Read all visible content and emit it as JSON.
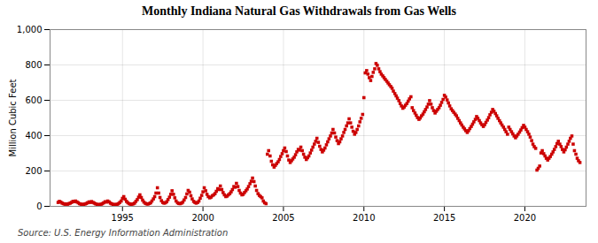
{
  "chart_data": {
    "type": "scatter",
    "title": "Monthly Indiana Natural Gas Withdrawals from Gas Wells",
    "ylabel": "Million Cubic Feet",
    "source": "Source: U.S. Energy Information Administration",
    "color": "#cc0000",
    "marker": "square",
    "grid": true,
    "xlim": [
      1990.5,
      2023.8
    ],
    "xticks": [
      1995,
      2000,
      2005,
      2010,
      2015,
      2020
    ],
    "ylim": [
      0,
      1000
    ],
    "yticks": [
      0,
      200,
      400,
      600,
      800,
      {
        "value": 1000,
        "label": "1,000"
      }
    ],
    "x": [
      1991.0,
      1991.08,
      1991.17,
      1991.25,
      1991.33,
      1991.42,
      1991.5,
      1991.58,
      1991.67,
      1991.75,
      1991.83,
      1991.92,
      1992.0,
      1992.08,
      1992.17,
      1992.25,
      1992.33,
      1992.42,
      1992.5,
      1992.58,
      1992.67,
      1992.75,
      1992.83,
      1992.92,
      1993.0,
      1993.08,
      1993.17,
      1993.25,
      1993.33,
      1993.42,
      1993.5,
      1993.58,
      1993.67,
      1993.75,
      1993.83,
      1993.92,
      1994.0,
      1994.08,
      1994.17,
      1994.25,
      1994.33,
      1994.42,
      1994.5,
      1994.58,
      1994.67,
      1994.75,
      1994.83,
      1994.92,
      1995.0,
      1995.08,
      1995.17,
      1995.25,
      1995.33,
      1995.42,
      1995.5,
      1995.58,
      1995.67,
      1995.75,
      1995.83,
      1995.92,
      1996.0,
      1996.08,
      1996.17,
      1996.25,
      1996.33,
      1996.42,
      1996.5,
      1996.58,
      1996.67,
      1996.75,
      1996.83,
      1996.92,
      1997.0,
      1997.08,
      1997.17,
      1997.25,
      1997.33,
      1997.42,
      1997.5,
      1997.58,
      1997.67,
      1997.75,
      1997.83,
      1997.92,
      1998.0,
      1998.08,
      1998.17,
      1998.25,
      1998.33,
      1998.42,
      1998.5,
      1998.58,
      1998.67,
      1998.75,
      1998.83,
      1998.92,
      1999.0,
      1999.08,
      1999.17,
      1999.25,
      1999.33,
      1999.42,
      1999.5,
      1999.58,
      1999.67,
      1999.75,
      1999.83,
      1999.92,
      2000.0,
      2000.08,
      2000.17,
      2000.25,
      2000.33,
      2000.42,
      2000.5,
      2000.58,
      2000.67,
      2000.75,
      2000.83,
      2000.92,
      2001.0,
      2001.08,
      2001.17,
      2001.25,
      2001.33,
      2001.42,
      2001.5,
      2001.58,
      2001.67,
      2001.75,
      2001.83,
      2001.92,
      2002.0,
      2002.08,
      2002.17,
      2002.25,
      2002.33,
      2002.42,
      2002.5,
      2002.58,
      2002.67,
      2002.75,
      2002.83,
      2002.92,
      2003.0,
      2003.08,
      2003.17,
      2003.25,
      2003.33,
      2003.42,
      2003.5,
      2003.58,
      2003.67,
      2003.75,
      2003.83,
      2003.92,
      2004.0,
      2004.08,
      2004.17,
      2004.25,
      2004.33,
      2004.42,
      2004.5,
      2004.58,
      2004.67,
      2004.75,
      2004.83,
      2004.92,
      2005.0,
      2005.08,
      2005.17,
      2005.25,
      2005.33,
      2005.42,
      2005.5,
      2005.58,
      2005.67,
      2005.75,
      2005.83,
      2005.92,
      2006.0,
      2006.08,
      2006.17,
      2006.25,
      2006.33,
      2006.42,
      2006.5,
      2006.58,
      2006.67,
      2006.75,
      2006.83,
      2006.92,
      2007.0,
      2007.08,
      2007.17,
      2007.25,
      2007.33,
      2007.42,
      2007.5,
      2007.58,
      2007.67,
      2007.75,
      2007.83,
      2007.92,
      2008.0,
      2008.08,
      2008.17,
      2008.25,
      2008.33,
      2008.42,
      2008.5,
      2008.58,
      2008.67,
      2008.75,
      2008.83,
      2008.92,
      2009.0,
      2009.08,
      2009.17,
      2009.25,
      2009.33,
      2009.42,
      2009.5,
      2009.58,
      2009.67,
      2009.75,
      2009.83,
      2009.92,
      2010.0,
      2010.08,
      2010.17,
      2010.25,
      2010.33,
      2010.42,
      2010.5,
      2010.58,
      2010.67,
      2010.75,
      2010.83,
      2010.92,
      2011.0,
      2011.08,
      2011.17,
      2011.25,
      2011.33,
      2011.42,
      2011.5,
      2011.58,
      2011.67,
      2011.75,
      2011.83,
      2011.92,
      2012.0,
      2012.08,
      2012.17,
      2012.25,
      2012.33,
      2012.42,
      2012.5,
      2012.58,
      2012.67,
      2012.75,
      2012.83,
      2012.92,
      2013.0,
      2013.08,
      2013.17,
      2013.25,
      2013.33,
      2013.42,
      2013.5,
      2013.58,
      2013.67,
      2013.75,
      2013.83,
      2013.92,
      2014.0,
      2014.08,
      2014.17,
      2014.25,
      2014.33,
      2014.42,
      2014.5,
      2014.58,
      2014.67,
      2014.75,
      2014.83,
      2014.92,
      2015.0,
      2015.08,
      2015.17,
      2015.25,
      2015.33,
      2015.42,
      2015.5,
      2015.58,
      2015.67,
      2015.75,
      2015.83,
      2015.92,
      2016.0,
      2016.08,
      2016.17,
      2016.25,
      2016.33,
      2016.42,
      2016.5,
      2016.58,
      2016.67,
      2016.75,
      2016.83,
      2016.92,
      2017.0,
      2017.08,
      2017.17,
      2017.25,
      2017.33,
      2017.42,
      2017.5,
      2017.58,
      2017.67,
      2017.75,
      2017.83,
      2017.92,
      2018.0,
      2018.08,
      2018.17,
      2018.25,
      2018.33,
      2018.42,
      2018.5,
      2018.58,
      2018.67,
      2018.75,
      2018.83,
      2018.92,
      2019.0,
      2019.08,
      2019.17,
      2019.25,
      2019.33,
      2019.42,
      2019.5,
      2019.58,
      2019.67,
      2019.75,
      2019.83,
      2019.92,
      2020.0,
      2020.08,
      2020.17,
      2020.25,
      2020.33,
      2020.42,
      2020.5,
      2020.58,
      2020.67,
      2020.75,
      2020.83,
      2020.92,
      2021.0,
      2021.08,
      2021.17,
      2021.25,
      2021.33,
      2021.42,
      2021.5,
      2021.58,
      2021.67,
      2021.75,
      2021.83,
      2021.92,
      2022.0,
      2022.08,
      2022.17,
      2022.25,
      2022.33,
      2022.42,
      2022.5,
      2022.58,
      2022.67,
      2022.75,
      2022.83,
      2022.92,
      2023.0,
      2023.08,
      2023.17,
      2023.25,
      2023.33,
      2023.42
    ],
    "values": [
      22,
      28,
      24,
      18,
      15,
      12,
      14,
      12,
      15,
      18,
      22,
      28,
      26,
      30,
      25,
      20,
      15,
      12,
      11,
      11,
      13,
      16,
      20,
      25,
      22,
      27,
      22,
      18,
      14,
      11,
      10,
      10,
      12,
      15,
      20,
      26,
      24,
      30,
      25,
      18,
      14,
      11,
      10,
      10,
      12,
      15,
      22,
      30,
      45,
      55,
      40,
      28,
      20,
      15,
      12,
      12,
      14,
      18,
      28,
      38,
      52,
      65,
      50,
      35,
      24,
      17,
      14,
      13,
      16,
      20,
      30,
      42,
      55,
      75,
      105,
      75,
      50,
      32,
      22,
      18,
      20,
      26,
      38,
      52,
      68,
      88,
      68,
      48,
      30,
      20,
      16,
      15,
      18,
      24,
      36,
      50,
      70,
      90,
      80,
      60,
      42,
      28,
      22,
      18,
      22,
      30,
      46,
      62,
      82,
      105,
      88,
      68,
      55,
      48,
      52,
      60,
      65,
      72,
      85,
      100,
      95,
      115,
      95,
      78,
      65,
      55,
      58,
      65,
      72,
      82,
      95,
      112,
      108,
      130,
      112,
      90,
      75,
      65,
      68,
      78,
      88,
      98,
      112,
      128,
      142,
      160,
      140,
      115,
      90,
      72,
      62,
      55,
      48,
      30,
      20,
      15,
      295,
      315,
      285,
      255,
      235,
      222,
      232,
      242,
      252,
      265,
      282,
      298,
      315,
      330,
      310,
      285,
      262,
      248,
      258,
      268,
      278,
      292,
      308,
      322,
      318,
      335,
      315,
      295,
      278,
      265,
      275,
      285,
      302,
      318,
      335,
      352,
      368,
      385,
      362,
      340,
      322,
      308,
      318,
      330,
      348,
      365,
      382,
      398,
      415,
      435,
      415,
      392,
      372,
      355,
      365,
      382,
      398,
      418,
      435,
      455,
      472,
      495,
      472,
      448,
      425,
      408,
      418,
      435,
      455,
      478,
      498,
      520,
      615,
      755,
      768,
      748,
      728,
      712,
      735,
      758,
      778,
      808,
      798,
      778,
      762,
      748,
      738,
      728,
      718,
      708,
      698,
      688,
      678,
      668,
      652,
      638,
      625,
      612,
      598,
      582,
      568,
      555,
      562,
      572,
      582,
      595,
      608,
      620,
      558,
      542,
      528,
      515,
      502,
      492,
      500,
      512,
      522,
      535,
      548,
      562,
      578,
      598,
      578,
      558,
      542,
      528,
      538,
      548,
      558,
      572,
      588,
      605,
      628,
      618,
      602,
      585,
      568,
      552,
      542,
      532,
      522,
      512,
      498,
      485,
      472,
      460,
      448,
      438,
      428,
      418,
      428,
      440,
      452,
      465,
      478,
      492,
      508,
      498,
      485,
      472,
      462,
      452,
      462,
      475,
      488,
      502,
      518,
      532,
      548,
      538,
      525,
      512,
      498,
      485,
      472,
      460,
      448,
      435,
      422,
      408,
      448,
      435,
      422,
      410,
      398,
      388,
      398,
      408,
      420,
      432,
      445,
      458,
      448,
      435,
      422,
      408,
      392,
      372,
      352,
      338,
      328,
      205,
      215,
      228,
      302,
      315,
      298,
      285,
      272,
      262,
      272,
      282,
      295,
      308,
      322,
      338,
      355,
      368,
      352,
      338,
      322,
      308,
      320,
      335,
      352,
      368,
      385,
      398,
      352,
      315,
      295,
      272,
      258,
      248
    ]
  }
}
